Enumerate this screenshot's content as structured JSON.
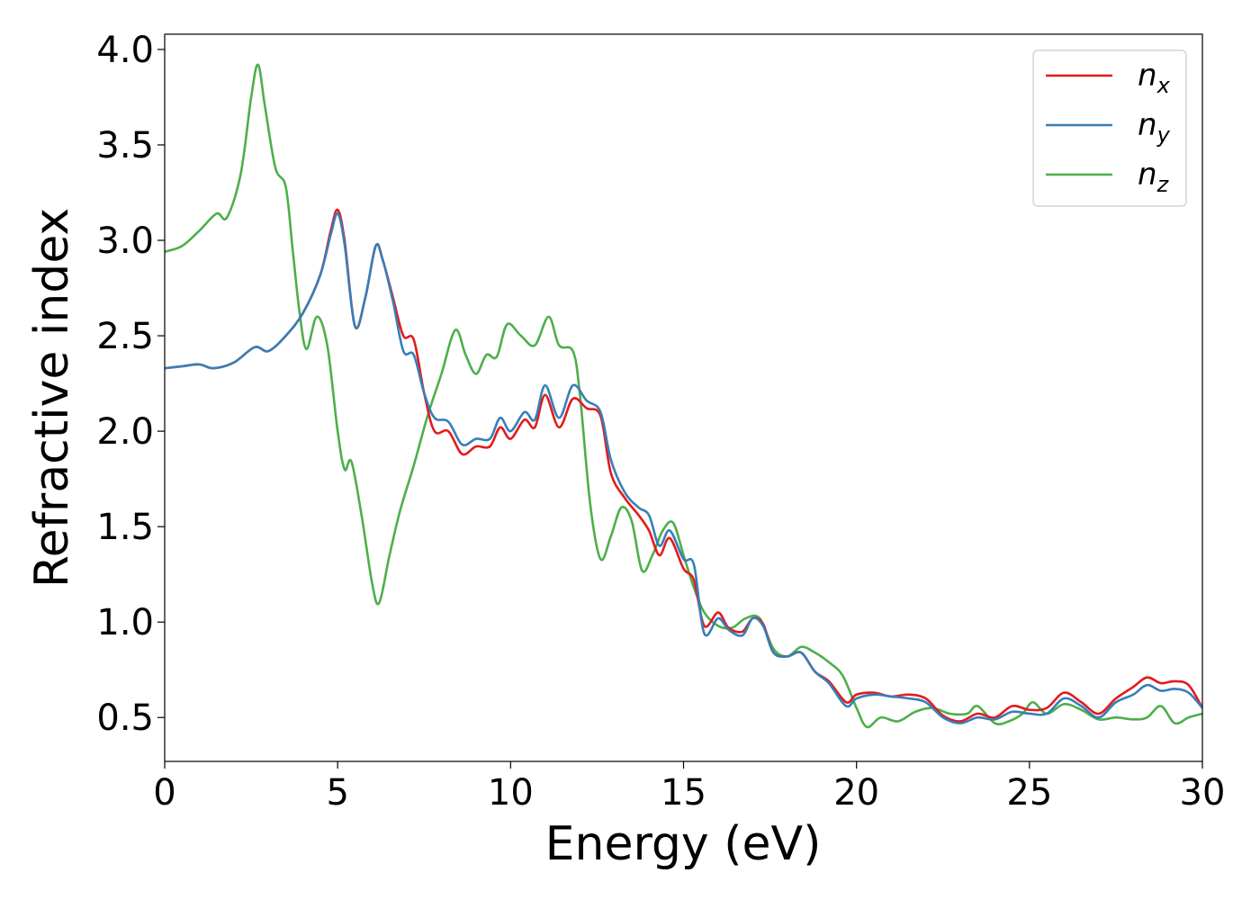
{
  "chart_data": {
    "type": "line",
    "xlabel": "Energy (eV)",
    "ylabel": "Refractive index",
    "xlim": [
      0,
      30
    ],
    "ylim": [
      0.27,
      4.08
    ],
    "xticks": [
      0,
      5,
      10,
      15,
      20,
      25,
      30
    ],
    "xtick_labels": [
      "0",
      "5",
      "10",
      "15",
      "20",
      "25",
      "30"
    ],
    "yticks": [
      0.5,
      1.0,
      1.5,
      2.0,
      2.5,
      3.0,
      3.5,
      4.0
    ],
    "ytick_labels": [
      "0.5",
      "1.0",
      "1.5",
      "2.0",
      "2.5",
      "3.0",
      "3.5",
      "4.0"
    ],
    "grid": false,
    "legend_position": "top-right",
    "series": [
      {
        "name": "n_x",
        "legend_base": "n",
        "legend_sub": "x",
        "color": "#e41a1c",
        "points": [
          [
            0,
            2.33
          ],
          [
            0.5,
            2.34
          ],
          [
            1.0,
            2.35
          ],
          [
            1.4,
            2.33
          ],
          [
            2.0,
            2.36
          ],
          [
            2.6,
            2.44
          ],
          [
            3.0,
            2.42
          ],
          [
            3.5,
            2.5
          ],
          [
            4.0,
            2.62
          ],
          [
            4.5,
            2.82
          ],
          [
            4.8,
            3.05
          ],
          [
            5.0,
            3.16
          ],
          [
            5.2,
            3.0
          ],
          [
            5.5,
            2.55
          ],
          [
            5.8,
            2.7
          ],
          [
            6.1,
            2.97
          ],
          [
            6.3,
            2.9
          ],
          [
            6.6,
            2.7
          ],
          [
            6.9,
            2.5
          ],
          [
            7.2,
            2.48
          ],
          [
            7.5,
            2.2
          ],
          [
            7.8,
            2.0
          ],
          [
            8.2,
            2.0
          ],
          [
            8.6,
            1.88
          ],
          [
            9.0,
            1.92
          ],
          [
            9.4,
            1.92
          ],
          [
            9.7,
            2.02
          ],
          [
            10.0,
            1.96
          ],
          [
            10.4,
            2.06
          ],
          [
            10.7,
            2.02
          ],
          [
            11.0,
            2.19
          ],
          [
            11.4,
            2.02
          ],
          [
            11.8,
            2.17
          ],
          [
            12.2,
            2.12
          ],
          [
            12.6,
            2.08
          ],
          [
            12.9,
            1.78
          ],
          [
            13.3,
            1.65
          ],
          [
            13.7,
            1.56
          ],
          [
            14.0,
            1.48
          ],
          [
            14.3,
            1.35
          ],
          [
            14.6,
            1.44
          ],
          [
            15.0,
            1.28
          ],
          [
            15.3,
            1.22
          ],
          [
            15.6,
            0.98
          ],
          [
            16.0,
            1.05
          ],
          [
            16.3,
            0.97
          ],
          [
            16.7,
            0.95
          ],
          [
            17.0,
            1.02
          ],
          [
            17.3,
            0.99
          ],
          [
            17.6,
            0.84
          ],
          [
            18.0,
            0.82
          ],
          [
            18.4,
            0.84
          ],
          [
            18.8,
            0.74
          ],
          [
            19.2,
            0.69
          ],
          [
            19.7,
            0.58
          ],
          [
            20.0,
            0.62
          ],
          [
            20.5,
            0.63
          ],
          [
            21.0,
            0.61
          ],
          [
            21.5,
            0.62
          ],
          [
            22.0,
            0.6
          ],
          [
            22.5,
            0.51
          ],
          [
            23.0,
            0.48
          ],
          [
            23.5,
            0.52
          ],
          [
            24.0,
            0.5
          ],
          [
            24.5,
            0.56
          ],
          [
            25.0,
            0.54
          ],
          [
            25.5,
            0.55
          ],
          [
            26.0,
            0.63
          ],
          [
            26.5,
            0.58
          ],
          [
            27.0,
            0.52
          ],
          [
            27.5,
            0.6
          ],
          [
            28.0,
            0.66
          ],
          [
            28.4,
            0.71
          ],
          [
            28.8,
            0.68
          ],
          [
            29.2,
            0.69
          ],
          [
            29.6,
            0.67
          ],
          [
            30.0,
            0.55
          ]
        ]
      },
      {
        "name": "n_y",
        "legend_base": "n",
        "legend_sub": "y",
        "color": "#377eb8",
        "points": [
          [
            0,
            2.33
          ],
          [
            0.5,
            2.34
          ],
          [
            1.0,
            2.35
          ],
          [
            1.4,
            2.33
          ],
          [
            2.0,
            2.36
          ],
          [
            2.6,
            2.44
          ],
          [
            3.0,
            2.42
          ],
          [
            3.5,
            2.5
          ],
          [
            4.0,
            2.62
          ],
          [
            4.5,
            2.82
          ],
          [
            4.8,
            3.03
          ],
          [
            5.0,
            3.14
          ],
          [
            5.2,
            2.98
          ],
          [
            5.5,
            2.55
          ],
          [
            5.8,
            2.7
          ],
          [
            6.1,
            2.97
          ],
          [
            6.3,
            2.9
          ],
          [
            6.6,
            2.68
          ],
          [
            6.9,
            2.42
          ],
          [
            7.2,
            2.4
          ],
          [
            7.5,
            2.2
          ],
          [
            7.8,
            2.07
          ],
          [
            8.2,
            2.05
          ],
          [
            8.6,
            1.93
          ],
          [
            9.0,
            1.96
          ],
          [
            9.4,
            1.96
          ],
          [
            9.7,
            2.07
          ],
          [
            10.0,
            2.0
          ],
          [
            10.4,
            2.1
          ],
          [
            10.7,
            2.06
          ],
          [
            11.0,
            2.24
          ],
          [
            11.4,
            2.07
          ],
          [
            11.8,
            2.24
          ],
          [
            12.2,
            2.16
          ],
          [
            12.6,
            2.1
          ],
          [
            12.9,
            1.85
          ],
          [
            13.3,
            1.68
          ],
          [
            13.7,
            1.6
          ],
          [
            14.0,
            1.56
          ],
          [
            14.3,
            1.4
          ],
          [
            14.6,
            1.48
          ],
          [
            15.0,
            1.33
          ],
          [
            15.3,
            1.3
          ],
          [
            15.6,
            0.94
          ],
          [
            16.0,
            1.02
          ],
          [
            16.3,
            0.96
          ],
          [
            16.7,
            0.93
          ],
          [
            17.0,
            1.02
          ],
          [
            17.3,
            0.98
          ],
          [
            17.6,
            0.84
          ],
          [
            18.0,
            0.82
          ],
          [
            18.4,
            0.84
          ],
          [
            18.8,
            0.74
          ],
          [
            19.2,
            0.68
          ],
          [
            19.7,
            0.56
          ],
          [
            20.0,
            0.6
          ],
          [
            20.5,
            0.62
          ],
          [
            21.0,
            0.61
          ],
          [
            21.5,
            0.6
          ],
          [
            22.0,
            0.58
          ],
          [
            22.5,
            0.5
          ],
          [
            23.0,
            0.47
          ],
          [
            23.5,
            0.5
          ],
          [
            24.0,
            0.49
          ],
          [
            24.5,
            0.53
          ],
          [
            25.0,
            0.52
          ],
          [
            25.5,
            0.52
          ],
          [
            26.0,
            0.6
          ],
          [
            26.5,
            0.56
          ],
          [
            27.0,
            0.5
          ],
          [
            27.5,
            0.58
          ],
          [
            28.0,
            0.62
          ],
          [
            28.4,
            0.67
          ],
          [
            28.8,
            0.64
          ],
          [
            29.2,
            0.65
          ],
          [
            29.6,
            0.63
          ],
          [
            30.0,
            0.55
          ]
        ]
      },
      {
        "name": "n_z",
        "legend_base": "n",
        "legend_sub": "z",
        "color": "#4daf4a",
        "points": [
          [
            0,
            2.94
          ],
          [
            0.5,
            2.97
          ],
          [
            1.0,
            3.05
          ],
          [
            1.5,
            3.14
          ],
          [
            1.8,
            3.12
          ],
          [
            2.2,
            3.35
          ],
          [
            2.5,
            3.75
          ],
          [
            2.7,
            3.92
          ],
          [
            2.9,
            3.7
          ],
          [
            3.2,
            3.38
          ],
          [
            3.5,
            3.28
          ],
          [
            3.7,
            2.95
          ],
          [
            3.9,
            2.62
          ],
          [
            4.1,
            2.43
          ],
          [
            4.4,
            2.6
          ],
          [
            4.7,
            2.45
          ],
          [
            5.0,
            2.0
          ],
          [
            5.2,
            1.8
          ],
          [
            5.4,
            1.84
          ],
          [
            5.7,
            1.55
          ],
          [
            6.0,
            1.2
          ],
          [
            6.2,
            1.1
          ],
          [
            6.5,
            1.35
          ],
          [
            6.8,
            1.58
          ],
          [
            7.2,
            1.82
          ],
          [
            7.6,
            2.08
          ],
          [
            8.0,
            2.3
          ],
          [
            8.4,
            2.53
          ],
          [
            8.7,
            2.4
          ],
          [
            9.0,
            2.3
          ],
          [
            9.3,
            2.4
          ],
          [
            9.6,
            2.39
          ],
          [
            9.9,
            2.56
          ],
          [
            10.3,
            2.5
          ],
          [
            10.7,
            2.45
          ],
          [
            11.1,
            2.6
          ],
          [
            11.4,
            2.45
          ],
          [
            11.8,
            2.42
          ],
          [
            12.0,
            2.2
          ],
          [
            12.3,
            1.62
          ],
          [
            12.6,
            1.33
          ],
          [
            12.9,
            1.45
          ],
          [
            13.2,
            1.6
          ],
          [
            13.5,
            1.53
          ],
          [
            13.8,
            1.27
          ],
          [
            14.1,
            1.35
          ],
          [
            14.4,
            1.48
          ],
          [
            14.7,
            1.52
          ],
          [
            15.0,
            1.35
          ],
          [
            15.3,
            1.18
          ],
          [
            15.6,
            1.05
          ],
          [
            16.0,
            0.98
          ],
          [
            16.4,
            0.97
          ],
          [
            16.8,
            1.02
          ],
          [
            17.2,
            1.02
          ],
          [
            17.6,
            0.86
          ],
          [
            18.0,
            0.82
          ],
          [
            18.4,
            0.87
          ],
          [
            18.8,
            0.84
          ],
          [
            19.2,
            0.79
          ],
          [
            19.6,
            0.72
          ],
          [
            20.0,
            0.55
          ],
          [
            20.3,
            0.45
          ],
          [
            20.7,
            0.5
          ],
          [
            21.2,
            0.48
          ],
          [
            21.7,
            0.53
          ],
          [
            22.2,
            0.55
          ],
          [
            22.7,
            0.52
          ],
          [
            23.2,
            0.52
          ],
          [
            23.5,
            0.56
          ],
          [
            24.0,
            0.47
          ],
          [
            24.4,
            0.48
          ],
          [
            24.8,
            0.52
          ],
          [
            25.1,
            0.58
          ],
          [
            25.5,
            0.52
          ],
          [
            26.0,
            0.57
          ],
          [
            26.5,
            0.54
          ],
          [
            27.0,
            0.49
          ],
          [
            27.5,
            0.5
          ],
          [
            28.0,
            0.49
          ],
          [
            28.4,
            0.5
          ],
          [
            28.8,
            0.56
          ],
          [
            29.2,
            0.47
          ],
          [
            29.6,
            0.5
          ],
          [
            30.0,
            0.52
          ]
        ]
      }
    ]
  }
}
